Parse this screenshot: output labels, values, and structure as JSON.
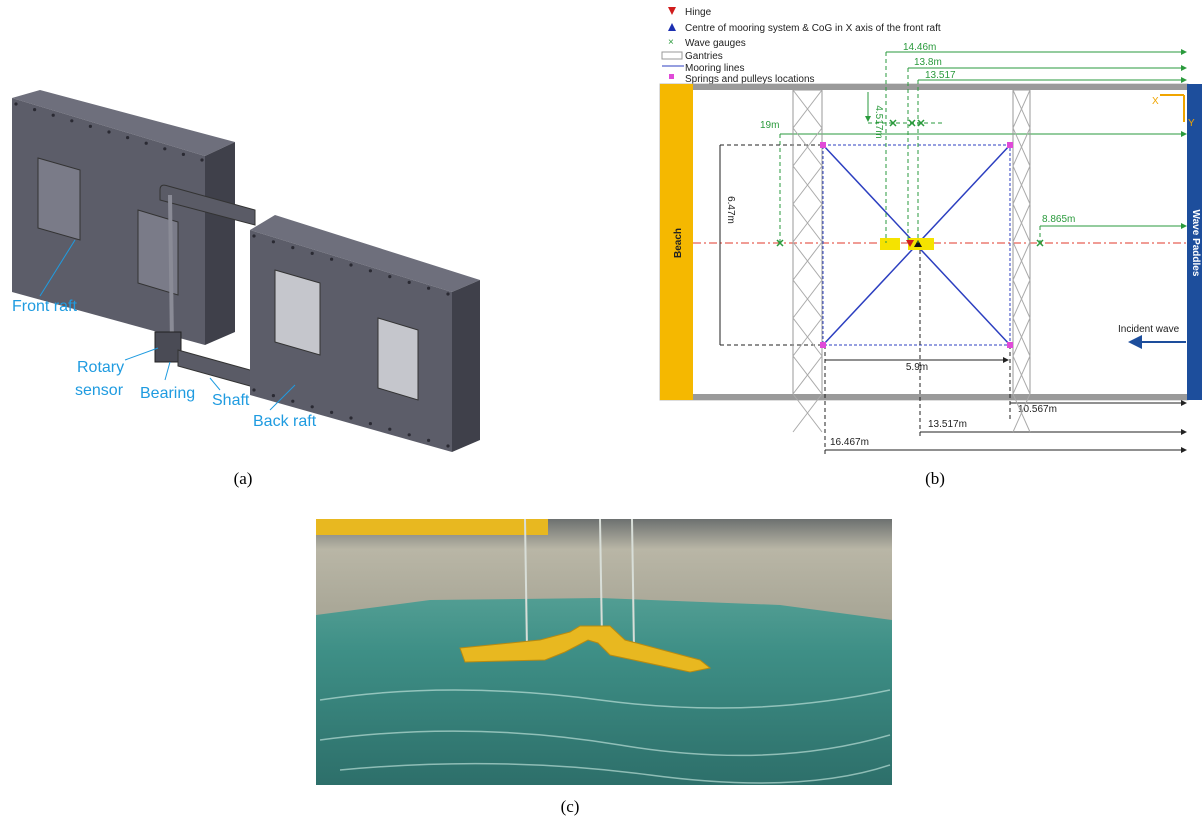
{
  "panel_a": {
    "labels": {
      "front_raft": "Front raft",
      "rotary_sensor": [
        "Rotary",
        "sensor"
      ],
      "bearing": "Bearing",
      "shaft": "Shaft",
      "back_raft": "Back raft"
    },
    "caption": "(a)"
  },
  "panel_b": {
    "legend": [
      "Hinge",
      "Centre of mooring system & CoG in X axis  of the front raft",
      "Wave gauges",
      "Gantries",
      "Mooring lines",
      "Springs and pulleys locations"
    ],
    "dimensions": [
      "14.46m",
      "13.8m",
      "13.517",
      "4.517m",
      "19m",
      "6.47m",
      "8.865m",
      "5.9m",
      "10.567m",
      "13.517m",
      "16.467m"
    ],
    "labels": {
      "beach": "Beach",
      "wave_paddles": "Wave Paddles",
      "incident_wave": "Incident wave",
      "x_axis": "X",
      "y_axis": "Y"
    },
    "caption": "(b)"
  },
  "panel_c": {
    "caption": "(c)"
  }
}
